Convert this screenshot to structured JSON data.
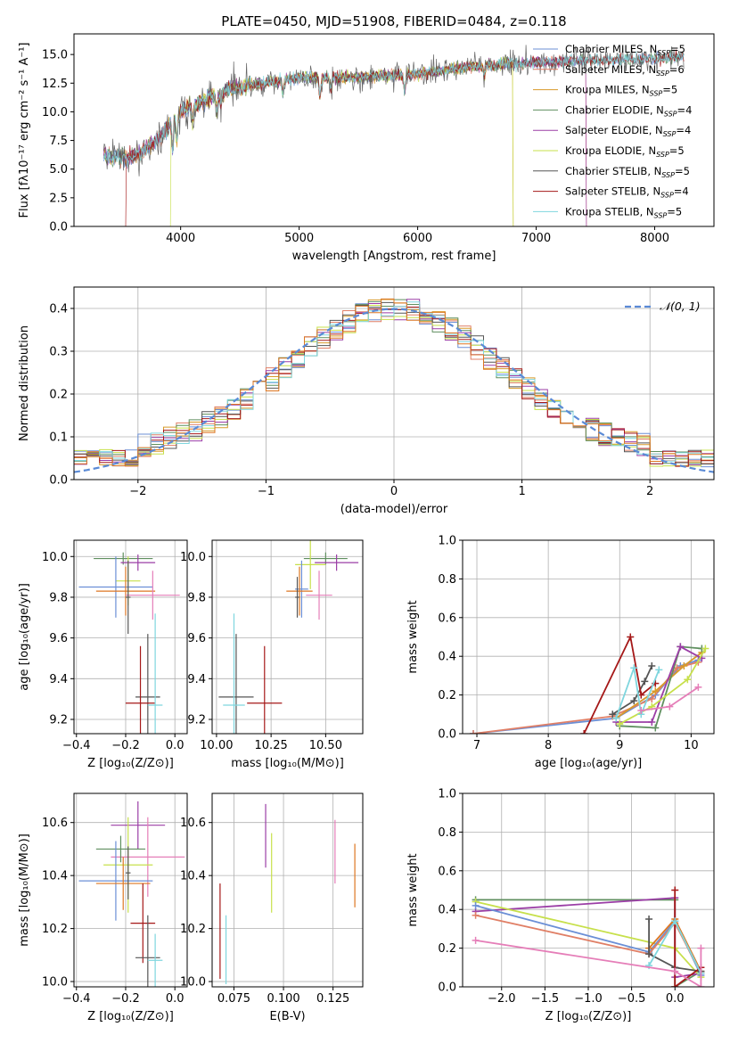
{
  "figure": {
    "title": "PLATE=0450, MJD=51908, FIBERID=0484, z=0.118"
  },
  "colors": {
    "Chabrier MILES": "#6b8fd6",
    "Salpeter MILES": "#e07f66",
    "Kroupa MILES": "#d89a2a",
    "Chabrier ELODIE": "#5f8f5f",
    "Salpeter ELODIE": "#9b3ea6",
    "Kroupa ELODIE": "#c7e04b",
    "Chabrier STELIB": "#555555",
    "Salpeter STELIB": "#a51818",
    "Kroupa STELIB": "#7fd6de",
    "extra_pink": "#e57eb8",
    "extra_orange": "#dd7722",
    "normal": "#5a8ad6"
  },
  "chart_data": [
    {
      "type": "line",
      "id": "spectrum",
      "xlabel": "wavelength [Angstrom, rest frame]",
      "ylabel": "Flux [fλ10⁻¹⁷ erg cm⁻² s⁻¹ A⁻¹]",
      "xlim": [
        3100,
        8500
      ],
      "ylim": [
        0,
        16.8
      ],
      "xticks": [
        4000,
        5000,
        6000,
        7000,
        8000
      ],
      "yticks": [
        0.0,
        2.5,
        5.0,
        7.5,
        10.0,
        12.5,
        15.0
      ],
      "ytick_labels": [
        "0.0",
        "2.5",
        "5.0",
        "7.5",
        "10.0",
        "12.5",
        "15.0"
      ],
      "legend_loc": "upper right",
      "legend": [
        {
          "label": "Chabrier MILES, N",
          "sub": "SSP",
          "tail": "=5",
          "color_key": "Chabrier MILES"
        },
        {
          "label": "Salpeter MILES, N",
          "sub": "SSP",
          "tail": "=6",
          "color_key": "Salpeter MILES"
        },
        {
          "label": "Kroupa MILES, N",
          "sub": "SSP",
          "tail": "=5",
          "color_key": "Kroupa MILES"
        },
        {
          "label": "Chabrier ELODIE, N",
          "sub": "SSP",
          "tail": "=4",
          "color_key": "Chabrier ELODIE"
        },
        {
          "label": "Salpeter ELODIE, N",
          "sub": "SSP",
          "tail": "=4",
          "color_key": "Salpeter ELODIE"
        },
        {
          "label": "Kroupa ELODIE, N",
          "sub": "SSP",
          "tail": "=5",
          "color_key": "Kroupa ELODIE"
        },
        {
          "label": "Chabrier STELIB, N",
          "sub": "SSP",
          "tail": "=5",
          "color_key": "Chabrier STELIB"
        },
        {
          "label": "Salpeter STELIB, N",
          "sub": "SSP",
          "tail": "=4",
          "color_key": "Salpeter STELIB"
        },
        {
          "label": "Kroupa STELIB, N",
          "sub": "SSP",
          "tail": "=5",
          "color_key": "Kroupa STELIB"
        }
      ],
      "data_range": [
        3350,
        8250
      ],
      "continuum": [
        [
          3350,
          6.2
        ],
        [
          3600,
          6.0
        ],
        [
          3800,
          7.5
        ],
        [
          4000,
          10.0
        ],
        [
          4400,
          12.0
        ],
        [
          5000,
          13.0
        ],
        [
          5500,
          13.0
        ],
        [
          6000,
          13.3
        ],
        [
          6500,
          14.0
        ],
        [
          7000,
          14.3
        ],
        [
          7500,
          14.5
        ],
        [
          8000,
          14.6
        ],
        [
          8250,
          14.8
        ]
      ],
      "cutoffs": [
        {
          "series": "Salpeter MILES",
          "start": 3540
        },
        {
          "series": "Salpeter STELIB",
          "start": 3540
        },
        {
          "series": "Kroupa ELODIE",
          "start": 3920,
          "end": 6800
        },
        {
          "series": "Kroupa MILES",
          "end": 6800
        },
        {
          "series": "Salpeter ELODIE",
          "end": 7420
        },
        {
          "series": "Salpeter MILES",
          "end": 7420
        }
      ]
    },
    {
      "type": "step",
      "id": "residual-histogram",
      "xlabel": "(data-model)/error",
      "ylabel": "Normed distribution",
      "xlim": [
        -2.5,
        2.5
      ],
      "ylim": [
        0,
        0.45
      ],
      "xticks": [
        -2,
        -1,
        0,
        1,
        2
      ],
      "xtick_labels": [
        "−2",
        "−1",
        "0",
        "1",
        "2"
      ],
      "yticks": [
        0.0,
        0.1,
        0.2,
        0.3,
        0.4
      ],
      "ytick_labels": [
        "0.0",
        "0.1",
        "0.2",
        "0.3",
        "0.4"
      ],
      "grid": true,
      "legend": "𝒩(0, 1)",
      "legend_loc": "upper right",
      "bin_width": 0.1,
      "series_keys": [
        "Chabrier MILES",
        "Salpeter MILES",
        "Kroupa MILES",
        "Chabrier ELODIE",
        "Salpeter ELODIE",
        "Kroupa ELODIE",
        "Chabrier STELIB",
        "Salpeter STELIB",
        "Kroupa STELIB",
        "extra_orange"
      ]
    },
    {
      "type": "errorbar",
      "id": "age-vs-Z",
      "xlabel": "Z [log₁₀(Z/Z⊙)]",
      "ylabel": "age  [log₁₀(age/yr)]",
      "xlim": [
        -0.41,
        0.05
      ],
      "ylim": [
        9.13,
        10.08
      ],
      "xticks": [
        -0.4,
        -0.2,
        0.0
      ],
      "xtick_labels": [
        "−0.4",
        "−0.2",
        "0.0"
      ],
      "yticks": [
        9.2,
        9.4,
        9.6,
        9.8,
        10.0
      ],
      "ytick_labels": [
        "9.2",
        "9.4",
        "9.6",
        "9.8",
        "10.0"
      ],
      "grid": true,
      "points": [
        {
          "c": "Chabrier ELODIE",
          "x": -0.21,
          "xerr": 0.12,
          "y": 9.99,
          "yerr": 0.03
        },
        {
          "c": "Salpeter ELODIE",
          "x": -0.15,
          "xerr": 0.07,
          "y": 9.97,
          "yerr": 0.04
        },
        {
          "c": "Kroupa ELODIE",
          "x": -0.19,
          "xerr": 0.05,
          "y": 9.88,
          "yerr": 0.12
        },
        {
          "c": "Chabrier MILES",
          "x": -0.24,
          "xerr": 0.15,
          "y": 9.85,
          "yerr": 0.15
        },
        {
          "c": "extra_orange",
          "x": -0.2,
          "xerr": 0.12,
          "y": 9.83,
          "yerr": 0.12
        },
        {
          "c": "extra_pink",
          "x": -0.09,
          "xerr": 0.11,
          "y": 9.81,
          "yerr": 0.12
        },
        {
          "c": "Chabrier STELIB",
          "x": -0.19,
          "xerr": 0.01,
          "y": 9.8,
          "yerr": 0.18
        },
        {
          "c": "Chabrier STELIB",
          "x": -0.11,
          "xerr": 0.05,
          "y": 9.31,
          "yerr": 0.31
        },
        {
          "c": "Salpeter STELIB",
          "x": -0.14,
          "xerr": 0.06,
          "y": 9.28,
          "yerr": 0.28
        },
        {
          "c": "Kroupa STELIB",
          "x": -0.08,
          "xerr": 0.03,
          "y": 9.27,
          "yerr": 0.45
        }
      ]
    },
    {
      "type": "errorbar",
      "id": "age-vs-mass",
      "xlabel": "mass [log₁₀(M/M⊙)]",
      "xlim": [
        9.98,
        10.67
      ],
      "ylim": [
        9.13,
        10.08
      ],
      "xticks": [
        10.0,
        10.25,
        10.5
      ],
      "xtick_labels": [
        "10.00",
        "10.25",
        "10.50"
      ],
      "yticks": [
        9.2,
        9.4,
        9.6,
        9.8,
        10.0
      ],
      "ytick_labels": [
        "9.2",
        "9.4",
        "9.6",
        "9.8",
        "10.0"
      ],
      "grid": true,
      "points": [
        {
          "c": "Chabrier ELODIE",
          "x": 10.5,
          "xerr": 0.1,
          "y": 9.99,
          "yerr": 0.03
        },
        {
          "c": "Salpeter ELODIE",
          "x": 10.55,
          "xerr": 0.1,
          "y": 9.97,
          "yerr": 0.04
        },
        {
          "c": "Kroupa ELODIE",
          "x": 10.43,
          "xerr": 0.07,
          "y": 9.96,
          "yerr": 0.12
        },
        {
          "c": "Chabrier MILES",
          "x": 10.39,
          "xerr": 0.03,
          "y": 9.84,
          "yerr": 0.14
        },
        {
          "c": "extra_orange",
          "x": 10.38,
          "xerr": 0.06,
          "y": 9.83,
          "yerr": 0.12
        },
        {
          "c": "extra_pink",
          "x": 10.47,
          "xerr": 0.06,
          "y": 9.81,
          "yerr": 0.12
        },
        {
          "c": "Chabrier STELIB",
          "x": 10.37,
          "xerr": 0.01,
          "y": 9.8,
          "yerr": 0.1
        },
        {
          "c": "Chabrier STELIB",
          "x": 10.09,
          "xerr": 0.08,
          "y": 9.31,
          "yerr": 0.31
        },
        {
          "c": "Salpeter STELIB",
          "x": 10.22,
          "xerr": 0.08,
          "y": 9.28,
          "yerr": 0.28
        },
        {
          "c": "Kroupa STELIB",
          "x": 10.08,
          "xerr": 0.05,
          "y": 9.27,
          "yerr": 0.45
        }
      ]
    },
    {
      "type": "line",
      "id": "mass-weight-vs-age",
      "xlabel": "age  [log₁₀(age/yr)]",
      "ylabel": "mass weight",
      "xlim": [
        6.8,
        10.32
      ],
      "ylim": [
        0,
        1.0
      ],
      "xticks": [
        7,
        8,
        9,
        10
      ],
      "xtick_labels": [
        "7",
        "8",
        "9",
        "10"
      ],
      "yticks": [
        0.0,
        0.2,
        0.4,
        0.6,
        0.8,
        1.0
      ],
      "ytick_labels": [
        "0.0",
        "0.2",
        "0.4",
        "0.6",
        "0.8",
        "1.0"
      ],
      "grid": true,
      "series": [
        {
          "c": "Chabrier MILES",
          "x": [
            6.95,
            8.95,
            9.5,
            9.85,
            10.1
          ],
          "y": [
            0.0,
            0.08,
            0.2,
            0.35,
            0.38
          ]
        },
        {
          "c": "Salpeter MILES",
          "x": [
            6.95,
            8.9,
            9.45,
            9.8,
            10.1
          ],
          "y": [
            0.0,
            0.09,
            0.18,
            0.34,
            0.37
          ]
        },
        {
          "c": "Kroupa MILES",
          "x": [
            8.95,
            9.5,
            9.9,
            10.15
          ],
          "y": [
            0.08,
            0.22,
            0.35,
            0.42
          ]
        },
        {
          "c": "Chabrier ELODIE",
          "x": [
            9.0,
            9.5,
            9.85,
            10.15
          ],
          "y": [
            0.04,
            0.03,
            0.45,
            0.44
          ]
        },
        {
          "c": "Salpeter ELODIE",
          "x": [
            8.95,
            9.45,
            9.85,
            10.15
          ],
          "y": [
            0.06,
            0.06,
            0.45,
            0.39
          ]
        },
        {
          "c": "Kroupa ELODIE",
          "x": [
            9.0,
            9.45,
            9.95,
            10.2
          ],
          "y": [
            0.05,
            0.14,
            0.28,
            0.44
          ]
        },
        {
          "c": "Chabrier STELIB",
          "x": [
            8.9,
            9.2,
            9.35,
            9.45
          ],
          "y": [
            0.1,
            0.17,
            0.27,
            0.35
          ]
        },
        {
          "c": "Salpeter STELIB",
          "x": [
            8.5,
            9.15,
            9.3,
            9.5
          ],
          "y": [
            0.0,
            0.5,
            0.2,
            0.26
          ]
        },
        {
          "c": "Kroupa STELIB",
          "x": [
            8.95,
            9.2,
            9.3,
            9.55
          ],
          "y": [
            0.08,
            0.34,
            0.1,
            0.33
          ]
        },
        {
          "c": "extra_pink",
          "x": [
            9.3,
            9.7,
            10.1
          ],
          "y": [
            0.12,
            0.14,
            0.24
          ]
        }
      ]
    },
    {
      "type": "errorbar",
      "id": "mass-vs-Z",
      "xlabel": "Z [log₁₀(Z/Z⊙)]",
      "ylabel": "mass [log₁₀(M/M⊙)]",
      "xlim": [
        -0.41,
        0.05
      ],
      "ylim": [
        9.98,
        10.71
      ],
      "xticks": [
        -0.4,
        -0.2,
        0.0
      ],
      "xtick_labels": [
        "−0.4",
        "−0.2",
        "0.0"
      ],
      "yticks": [
        10.0,
        10.2,
        10.4,
        10.6
      ],
      "ytick_labels": [
        "10.0",
        "10.2",
        "10.4",
        "10.6"
      ],
      "grid": true,
      "points": [
        {
          "c": "Salpeter ELODIE",
          "x": -0.15,
          "xerr": 0.11,
          "y": 10.59,
          "yerr": 0.09
        },
        {
          "c": "extra_pink",
          "x": -0.11,
          "xerr": 0.15,
          "y": 10.47,
          "yerr": 0.15
        },
        {
          "c": "Chabrier ELODIE",
          "x": -0.22,
          "xerr": 0.1,
          "y": 10.5,
          "yerr": 0.05
        },
        {
          "c": "Kroupa ELODIE",
          "x": -0.19,
          "xerr": 0.1,
          "y": 10.44,
          "yerr": 0.18
        },
        {
          "c": "Chabrier MILES",
          "x": -0.24,
          "xerr": 0.15,
          "y": 10.38,
          "yerr": 0.15
        },
        {
          "c": "extra_orange",
          "x": -0.21,
          "xerr": 0.11,
          "y": 10.37,
          "yerr": 0.1
        },
        {
          "c": "Chabrier STELIB",
          "x": -0.19,
          "xerr": 0.01,
          "y": 10.41,
          "yerr": 0.1
        },
        {
          "c": "Salpeter STELIB",
          "x": -0.13,
          "xerr": 0.05,
          "y": 10.22,
          "yerr": 0.15
        },
        {
          "c": "Chabrier STELIB",
          "x": -0.11,
          "xerr": 0.05,
          "y": 10.09,
          "yerr": 0.16
        },
        {
          "c": "Kroupa STELIB",
          "x": -0.08,
          "xerr": 0.03,
          "y": 10.08,
          "yerr": 0.1
        }
      ]
    },
    {
      "type": "errorbar",
      "id": "mass-vs-EBV",
      "xlabel": "E(B-V)",
      "xlim": [
        0.064,
        0.14
      ],
      "ylim": [
        9.98,
        10.71
      ],
      "xticks": [
        0.075,
        0.1,
        0.125
      ],
      "xtick_labels": [
        "0.075",
        "0.100",
        "0.125"
      ],
      "yticks": [
        10.0,
        10.2,
        10.4,
        10.6
      ],
      "ytick_labels": [
        "10.0",
        "10.2",
        "10.4",
        "10.6"
      ],
      "grid": true,
      "points": [
        {
          "c": "Salpeter ELODIE",
          "x": 0.091,
          "y": 10.55,
          "yerr": 0.12
        },
        {
          "c": "extra_pink",
          "x": 0.126,
          "y": 10.49,
          "yerr": 0.12
        },
        {
          "c": "Kroupa ELODIE",
          "x": 0.094,
          "y": 10.41,
          "yerr": 0.15
        },
        {
          "c": "extra_orange",
          "x": 0.136,
          "y": 10.4,
          "yerr": 0.12
        },
        {
          "c": "Salpeter STELIB",
          "x": 0.068,
          "y": 10.19,
          "yerr": 0.18
        },
        {
          "c": "Kroupa STELIB",
          "x": 0.071,
          "y": 10.12,
          "yerr": 0.13
        }
      ]
    },
    {
      "type": "line",
      "id": "mass-weight-vs-Z",
      "xlabel": "Z [log₁₀(Z/Z⊙)]",
      "ylabel": "mass weight",
      "xlim": [
        -2.45,
        0.45
      ],
      "ylim": [
        0,
        1.0
      ],
      "xticks": [
        -2.0,
        -1.5,
        -1.0,
        -0.5,
        0.0
      ],
      "xtick_labels": [
        "−2.0",
        "−1.5",
        "−1.0",
        "−0.5",
        "0.0"
      ],
      "yticks": [
        0.0,
        0.2,
        0.4,
        0.6,
        0.8,
        1.0
      ],
      "ytick_labels": [
        "0.0",
        "0.2",
        "0.4",
        "0.6",
        "0.8",
        "1.0"
      ],
      "grid": true,
      "series": [
        {
          "c": "Chabrier ELODIE",
          "x": [
            -2.3,
            0.0,
            0.0,
            0.3
          ],
          "y": [
            0.45,
            0.45,
            0.0,
            0.08
          ]
        },
        {
          "c": "Salpeter ELODIE",
          "x": [
            -2.3,
            0.0,
            0.0,
            0.3
          ],
          "y": [
            0.39,
            0.46,
            0.05,
            0.07
          ]
        },
        {
          "c": "Kroupa ELODIE",
          "x": [
            -2.3,
            0.0,
            0.3
          ],
          "y": [
            0.44,
            0.2,
            0.05
          ]
        },
        {
          "c": "Chabrier MILES",
          "x": [
            -2.3,
            -0.3,
            0.0,
            0.3
          ],
          "y": [
            0.42,
            0.18,
            0.34,
            0.06
          ]
        },
        {
          "c": "Salpeter MILES",
          "x": [
            -2.3,
            -0.3,
            0.0,
            0.3
          ],
          "y": [
            0.37,
            0.17,
            0.33,
            0.07
          ]
        },
        {
          "c": "extra_orange",
          "x": [
            -0.3,
            0.0,
            0.3
          ],
          "y": [
            0.2,
            0.35,
            0.08
          ]
        },
        {
          "c": "Chabrier STELIB",
          "x": [
            -0.3,
            -0.3,
            0.0,
            0.3
          ],
          "y": [
            0.35,
            0.17,
            0.1,
            0.08
          ]
        },
        {
          "c": "Salpeter STELIB",
          "x": [
            0.0,
            0.0,
            0.3
          ],
          "y": [
            0.5,
            0.0,
            0.1
          ]
        },
        {
          "c": "Kroupa STELIB",
          "x": [
            -0.3,
            0.0,
            0.3
          ],
          "y": [
            0.11,
            0.34,
            0.07
          ]
        },
        {
          "c": "extra_pink",
          "x": [
            -2.3,
            0.0,
            0.3,
            0.3
          ],
          "y": [
            0.24,
            0.08,
            0.0,
            0.2
          ]
        }
      ]
    }
  ]
}
